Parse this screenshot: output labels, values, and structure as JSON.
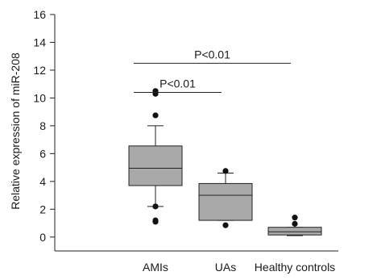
{
  "chart_data": {
    "type": "box",
    "ylabel": "Relative expression of miR-208",
    "ylim": [
      -1,
      16
    ],
    "yticks": [
      0,
      2,
      4,
      6,
      8,
      10,
      12,
      14,
      16
    ],
    "categories": [
      "AMIs",
      "UAs",
      "Healthy controls"
    ],
    "grid": false,
    "boxes": [
      {
        "category": "AMIs",
        "whisker_low": 2.2,
        "q1": 3.7,
        "median": 4.95,
        "q3": 6.55,
        "whisker_high": 8.0,
        "outliers": [
          1.1,
          1.2,
          2.2,
          8.75,
          10.3,
          10.5
        ]
      },
      {
        "category": "UAs",
        "whisker_low": 1.2,
        "q1": 1.2,
        "median": 3.0,
        "q3": 3.85,
        "whisker_high": 4.6,
        "outliers": [
          0.85,
          4.75
        ]
      },
      {
        "category": "Healthy controls",
        "whisker_low": 0.1,
        "q1": 0.15,
        "median": 0.38,
        "q3": 0.7,
        "whisker_high": 0.7,
        "outliers": [
          0.95,
          1.4
        ]
      }
    ],
    "box_color": "#a9a9a9",
    "annotations": [
      {
        "text": "P<0.01",
        "from": "AMIs",
        "to": "Healthy controls",
        "y": 12.5
      },
      {
        "text": "P<0.01",
        "from": "AMIs",
        "to": "UAs",
        "y": 10.4
      }
    ]
  }
}
